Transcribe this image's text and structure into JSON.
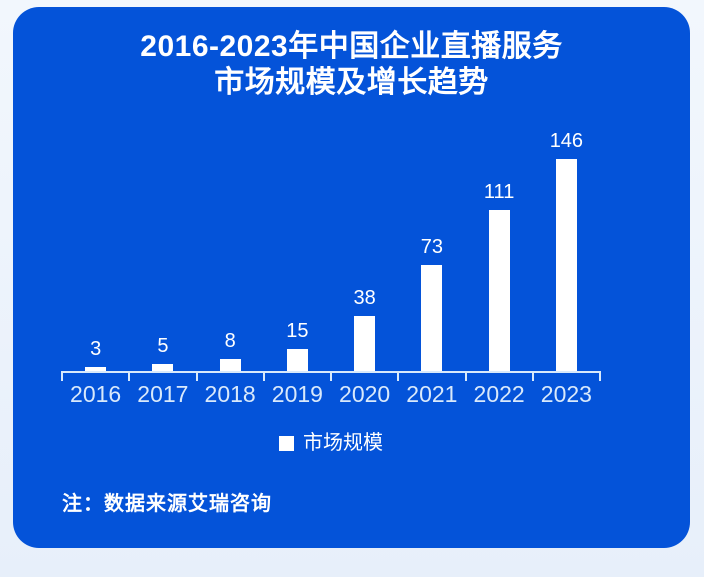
{
  "page": {
    "background_color": "#edf4fc",
    "card_color": "#0453d9"
  },
  "title": {
    "line1": "2016-2023年中国企业直播服务",
    "line2": "市场规模及增长趋势"
  },
  "chart_data": {
    "type": "bar",
    "title": "2016-2023年中国企业直播服务市场规模及增长趋势",
    "categories": [
      "2016",
      "2017",
      "2018",
      "2019",
      "2020",
      "2021",
      "2022",
      "2023"
    ],
    "series": [
      {
        "name": "市场规模",
        "values": [
          3,
          5,
          8,
          15,
          38,
          73,
          111,
          146
        ]
      }
    ],
    "xlabel": "",
    "ylabel": "",
    "ylim": [
      0,
      160
    ],
    "y_axis_shown": false,
    "grid": false,
    "value_labels_shown": true,
    "bar_color": "#ffffff",
    "value_label_color": "#ffffff",
    "axis_label_color": "#d9e9fb",
    "axis_line_color": "#d9e9fb",
    "legend_position": "bottom"
  },
  "legend": {
    "label": "市场规模",
    "marker_color": "#ffffff",
    "marker_icon": "square-icon"
  },
  "note": {
    "text": "注：数据来源艾瑞咨询"
  }
}
